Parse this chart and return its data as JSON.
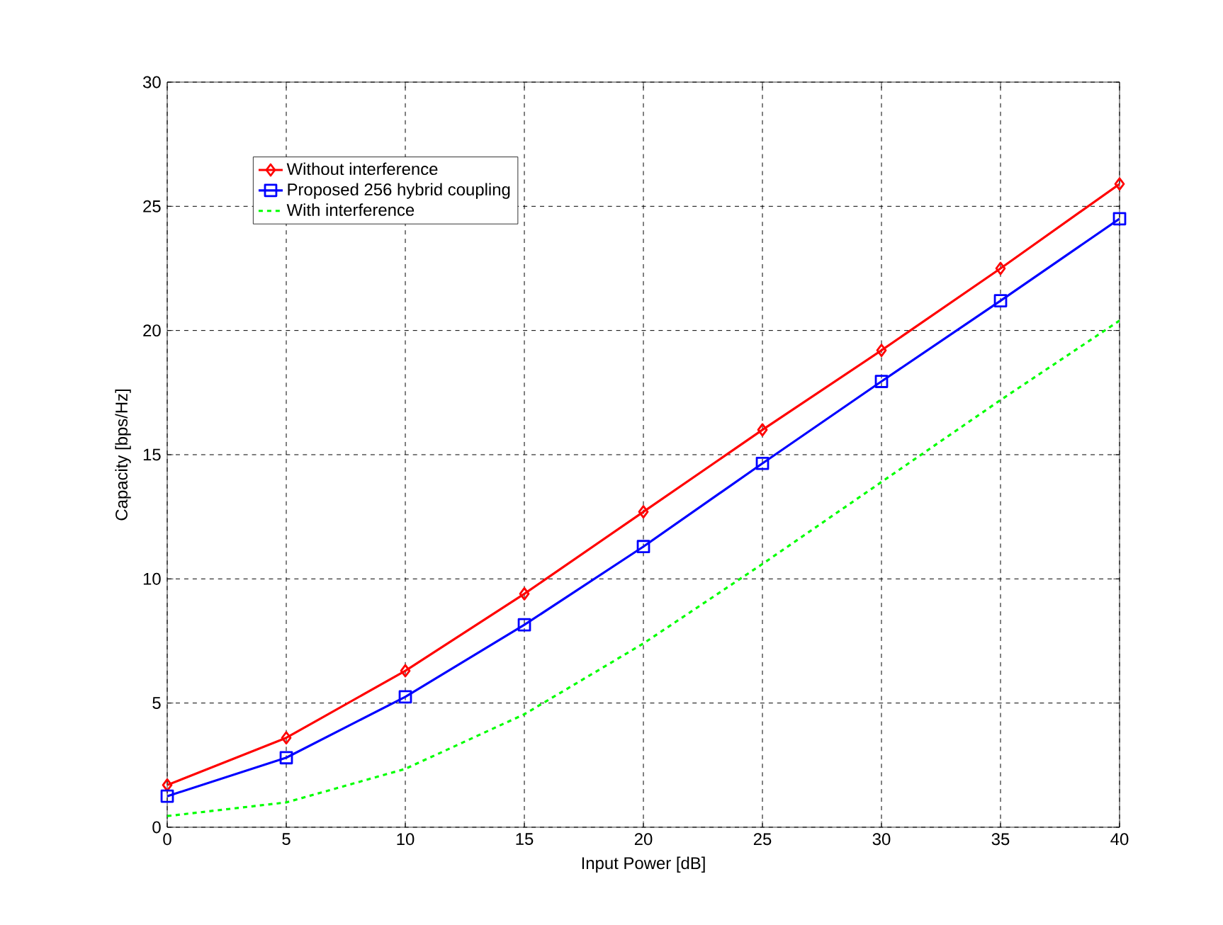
{
  "chart_data": {
    "type": "line",
    "xlabel": "Input Power [dB]",
    "ylabel": "Capacity [bps/Hz]",
    "x": [
      0,
      5,
      10,
      15,
      20,
      25,
      30,
      35,
      40
    ],
    "series": [
      {
        "name": "Without interference",
        "color": "#ff0000",
        "marker": "diamond",
        "line_style": "solid",
        "values": [
          1.7,
          3.6,
          6.3,
          9.4,
          12.7,
          16.0,
          19.2,
          22.5,
          25.9
        ]
      },
      {
        "name": "Proposed 256 hybrid coupling",
        "color": "#0000ff",
        "marker": "square",
        "line_style": "solid",
        "values": [
          1.25,
          2.8,
          5.25,
          8.15,
          11.3,
          14.65,
          17.95,
          21.2,
          24.5
        ]
      },
      {
        "name": "With interference",
        "color": "#00ff00",
        "marker": "none",
        "line_style": "dashed",
        "values": [
          0.45,
          1.0,
          2.35,
          4.55,
          7.4,
          10.6,
          13.9,
          17.2,
          20.4
        ]
      }
    ],
    "xlim": [
      0,
      40
    ],
    "ylim": [
      0,
      30
    ],
    "xticks": [
      0,
      5,
      10,
      15,
      20,
      25,
      30,
      35,
      40
    ],
    "yticks": [
      0,
      5,
      10,
      15,
      20,
      25,
      30
    ],
    "grid": true,
    "legend": "top left"
  }
}
